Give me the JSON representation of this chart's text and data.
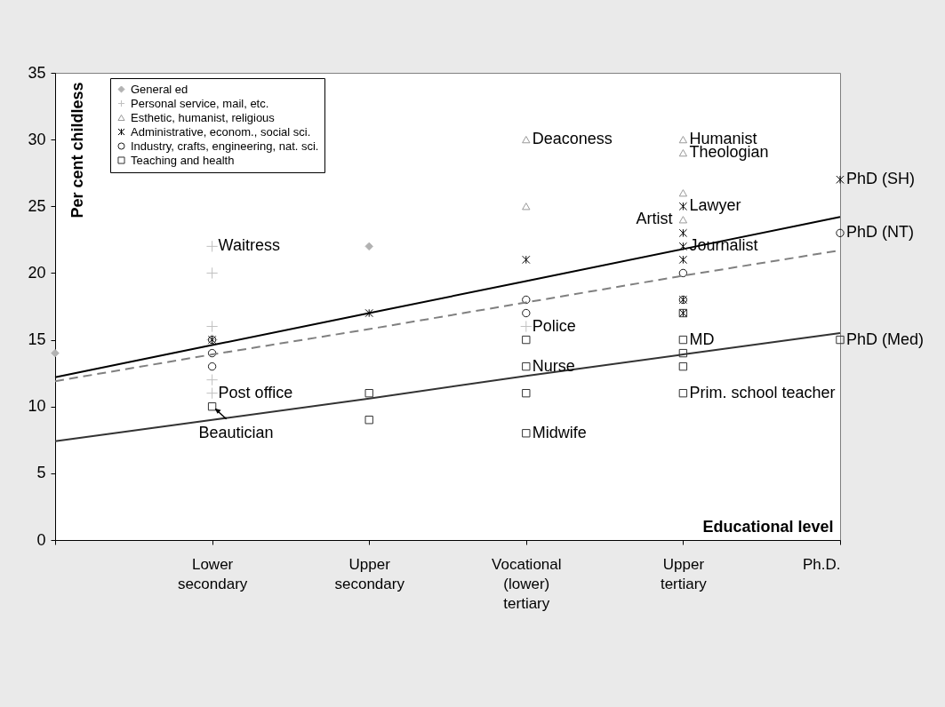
{
  "chart_data": {
    "type": "scatter",
    "xlabel": "Educational level",
    "ylabel": "Per cent childless",
    "categories": [
      null,
      "Lower secondary",
      "Upper secondary",
      "Vocational (lower) tertiary",
      "Upper tertiary",
      "Ph.D."
    ],
    "ylim": [
      0,
      35
    ],
    "yticks": [
      0,
      5,
      10,
      15,
      20,
      25,
      30,
      35
    ],
    "grid": false,
    "legend": "top left",
    "series": [
      {
        "name": "General ed",
        "color": "#b2b2b2",
        "marker": "diamond",
        "values": [
          14,
          null,
          22,
          null,
          null,
          null
        ]
      },
      {
        "name": "Personal service, mail, etc.",
        "color": "#c0c0c0",
        "marker": "cross",
        "x": [
          "Lower secondary",
          "Lower secondary",
          "Lower secondary",
          "Lower secondary",
          "Lower secondary",
          "Lower secondary",
          "Vocational (lower) tertiary"
        ],
        "values": [
          22,
          20,
          16,
          15,
          12,
          11,
          16
        ]
      },
      {
        "name": "Esthetic, humanist, religious",
        "color": "#999999",
        "marker": "triangle",
        "x": [
          "Vocational (lower) tertiary",
          "Vocational (lower) tertiary",
          "Upper tertiary",
          "Upper tertiary",
          "Upper tertiary",
          "Upper tertiary"
        ],
        "values": [
          30,
          25,
          30,
          29,
          26,
          24
        ]
      },
      {
        "name": "Administrative, econom., social sci.",
        "color": "#000000",
        "marker": "cross",
        "x": [
          "Lower secondary",
          "Upper secondary",
          "Vocational (lower) tertiary",
          "Upper tertiary",
          "Upper tertiary",
          "Upper tertiary",
          "Upper tertiary",
          "Upper tertiary",
          "Upper tertiary",
          "Ph.D."
        ],
        "values": [
          15,
          17,
          21,
          25,
          23,
          22,
          21,
          18,
          17,
          27
        ]
      },
      {
        "name": "Industry, crafts, engineering, nat. sci.",
        "color": "#1a1a1a",
        "marker": "circle",
        "x": [
          "Lower secondary",
          "Lower secondary",
          "Lower secondary",
          "Vocational (lower) tertiary",
          "Vocational (lower) tertiary",
          "Upper tertiary",
          "Upper tertiary",
          "Ph.D."
        ],
        "values": [
          15,
          14,
          13,
          18,
          17,
          20,
          18,
          23
        ]
      },
      {
        "name": "Teaching and health",
        "color": "#333333",
        "marker": "square",
        "x": [
          "Lower secondary",
          "Upper secondary",
          "Upper secondary",
          "Vocational (lower) tertiary",
          "Vocational (lower) tertiary",
          "Vocational (lower) tertiary",
          "Vocational (lower) tertiary",
          "Upper tertiary",
          "Upper tertiary",
          "Upper tertiary",
          "Upper tertiary",
          "Upper tertiary",
          "Ph.D."
        ],
        "values": [
          10,
          11,
          9,
          15,
          13,
          11,
          8,
          17,
          15,
          14,
          13,
          11,
          15
        ]
      },
      {
        "type": "line",
        "color": "#000000",
        "line_style": "solid",
        "values": [
          12.2,
          14.6,
          17,
          19.4,
          21.8,
          24.2
        ]
      },
      {
        "type": "line",
        "color": "#808080",
        "line_style": "dashed",
        "values": [
          11.9,
          13.9,
          15.8,
          17.8,
          19.8,
          21.7
        ]
      },
      {
        "type": "line",
        "color": "#333333",
        "line_style": "solid",
        "values": [
          7.4,
          9,
          10.6,
          12.3,
          13.9,
          15.5
        ]
      }
    ],
    "annotations": [
      {
        "text": "Waitress",
        "x": "Lower secondary",
        "y": 22
      },
      {
        "text": "Post office",
        "x": "Lower secondary",
        "y": 11
      },
      {
        "text": "Beautician",
        "x": "Lower secondary",
        "y": 10
      },
      {
        "text": "Deaconess",
        "x": "Vocational (lower) tertiary",
        "y": 30
      },
      {
        "text": "Police",
        "x": "Vocational (lower) tertiary",
        "y": 16
      },
      {
        "text": "Nurse",
        "x": "Vocational (lower) tertiary",
        "y": 13
      },
      {
        "text": "Midwife",
        "x": "Vocational (lower) tertiary",
        "y": 8
      },
      {
        "text": "Humanist",
        "x": "Upper tertiary",
        "y": 30
      },
      {
        "text": "Theologian",
        "x": "Upper tertiary",
        "y": 29
      },
      {
        "text": "Lawyer",
        "x": "Upper tertiary",
        "y": 25
      },
      {
        "text": "Artist",
        "x": "Upper tertiary",
        "y": 24
      },
      {
        "text": "Journalist",
        "x": "Upper tertiary",
        "y": 22
      },
      {
        "text": "MD",
        "x": "Upper tertiary",
        "y": 15
      },
      {
        "text": "Prim. school teacher",
        "x": "Upper tertiary",
        "y": 11
      },
      {
        "text": "PhD (SH)",
        "x": "Ph.D.",
        "y": 27
      },
      {
        "text": "PhD (NT)",
        "x": "Ph.D.",
        "y": 23
      },
      {
        "text": "PhD (Med)",
        "x": "Ph.D.",
        "y": 15
      }
    ]
  }
}
